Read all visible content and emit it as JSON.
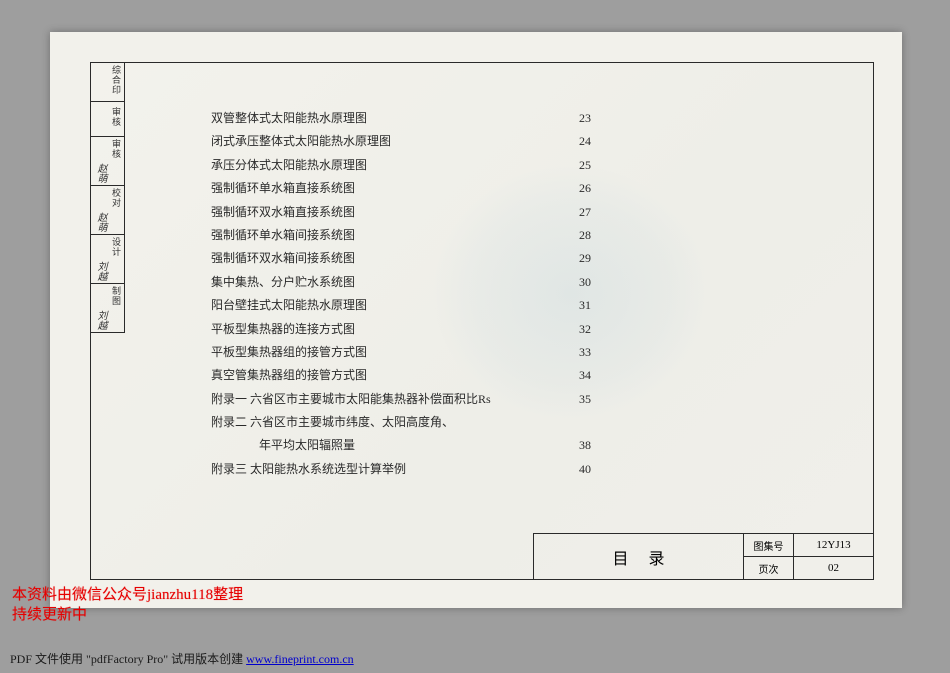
{
  "side_labels": [
    {
      "lab": "制图",
      "sig": "刘越"
    },
    {
      "lab": "设计",
      "sig": "刘越"
    },
    {
      "lab": "校对",
      "sig": "赵萌"
    },
    {
      "lab": "审核",
      "sig": "赵萌"
    },
    {
      "lab": "审核",
      "sig": ""
    },
    {
      "lab": "综合印",
      "sig": ""
    }
  ],
  "toc": [
    {
      "t": "双管整体式太阳能热水原理图",
      "p": "23"
    },
    {
      "t": "闭式承压整体式太阳能热水原理图",
      "p": "24"
    },
    {
      "t": "承压分体式太阳能热水原理图",
      "p": "25"
    },
    {
      "t": "强制循环单水箱直接系统图",
      "p": "26"
    },
    {
      "t": "强制循环双水箱直接系统图",
      "p": "27"
    },
    {
      "t": "强制循环单水箱间接系统图",
      "p": "28"
    },
    {
      "t": "强制循环双水箱间接系统图",
      "p": "29"
    },
    {
      "t": "集中集热、分户贮水系统图",
      "p": "30"
    },
    {
      "t": "阳台壁挂式太阳能热水原理图",
      "p": "31"
    },
    {
      "t": "平板型集热器的连接方式图",
      "p": "32"
    },
    {
      "t": "平板型集热器组的接管方式图",
      "p": "33"
    },
    {
      "t": "真空管集热器组的接管方式图",
      "p": "34"
    },
    {
      "t": "附录一 六省区市主要城市太阳能集热器补偿面积比Rs",
      "p": "35"
    },
    {
      "t": "附录二 六省区市主要城市纬度、太阳高度角、",
      "p": ""
    },
    {
      "t": "年平均太阳辐照量",
      "p": "38",
      "indent": true
    },
    {
      "t": "附录三 太阳能热水系统选型计算举例",
      "p": "40"
    }
  ],
  "footer": {
    "title": "目录",
    "meta": [
      {
        "label": "图集号",
        "val": "12YJ13"
      },
      {
        "label": "页次",
        "val": "02"
      }
    ]
  },
  "red_lines": "本资料由微信公众号jianzhu118整理\n持续更新中",
  "pdf": {
    "prefix": "PDF 文件使用 \"pdfFactory Pro\" 试用版本创建 ",
    "link_text": "www.fineprint.com.cn"
  }
}
